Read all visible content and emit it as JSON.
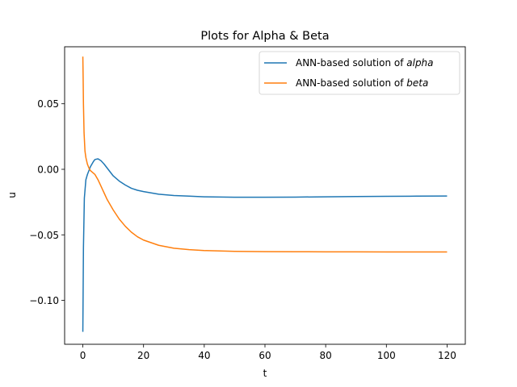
{
  "chart_data": {
    "type": "line",
    "title": "Plots for Alpha & Beta",
    "xlabel": "t",
    "ylabel": "u",
    "xlim": [
      -6,
      126
    ],
    "ylim": [
      -0.1335,
      0.0935
    ],
    "xticks": [
      0,
      20,
      40,
      60,
      80,
      100,
      120
    ],
    "xtick_labels": [
      "0",
      "20",
      "40",
      "60",
      "80",
      "100",
      "120"
    ],
    "yticks": [
      0.05,
      0.0,
      -0.05,
      -0.1
    ],
    "ytick_labels": [
      "0.05",
      "0.00",
      "−0.05",
      "−0.10"
    ],
    "grid": false,
    "legend_position": "upper-right",
    "series": [
      {
        "name_prefix": "ANN-based solution of ",
        "name_math": "alpha",
        "color": "#1f77b4",
        "x": [
          0,
          0.2,
          0.5,
          1,
          1.5,
          2,
          2.5,
          3,
          3.5,
          4,
          5,
          6,
          7,
          8,
          9,
          10,
          12,
          14,
          16,
          18,
          20,
          25,
          30,
          35,
          40,
          50,
          60,
          70,
          80,
          90,
          100,
          110,
          120
        ],
        "y": [
          -0.124,
          -0.06,
          -0.022,
          -0.008,
          -0.004,
          -0.001,
          0.002,
          0.004,
          0.006,
          0.0075,
          0.008,
          0.0065,
          0.004,
          0.001,
          -0.002,
          -0.005,
          -0.009,
          -0.012,
          -0.0145,
          -0.016,
          -0.017,
          -0.019,
          -0.02,
          -0.0205,
          -0.021,
          -0.0213,
          -0.0213,
          -0.0212,
          -0.021,
          -0.0208,
          -0.0206,
          -0.0205,
          -0.0204
        ]
      },
      {
        "name_prefix": "ANN-based solution of ",
        "name_math": "beta",
        "color": "#ff7f0e",
        "x": [
          0,
          0.1,
          0.2,
          0.4,
          0.7,
          1,
          1.5,
          2,
          2.5,
          3,
          4,
          5,
          6,
          7,
          8,
          10,
          12,
          14,
          16,
          18,
          20,
          25,
          30,
          35,
          40,
          50,
          60,
          70,
          80,
          90,
          100,
          110,
          120
        ],
        "y": [
          0.086,
          0.07,
          0.05,
          0.028,
          0.014,
          0.009,
          0.004,
          0.001,
          -0.001,
          -0.002,
          -0.004,
          -0.008,
          -0.013,
          -0.018,
          -0.023,
          -0.031,
          -0.038,
          -0.0435,
          -0.048,
          -0.0515,
          -0.054,
          -0.058,
          -0.0602,
          -0.0613,
          -0.062,
          -0.0626,
          -0.0628,
          -0.0629,
          -0.063,
          -0.063,
          -0.0631,
          -0.0631,
          -0.0631
        ]
      }
    ]
  }
}
